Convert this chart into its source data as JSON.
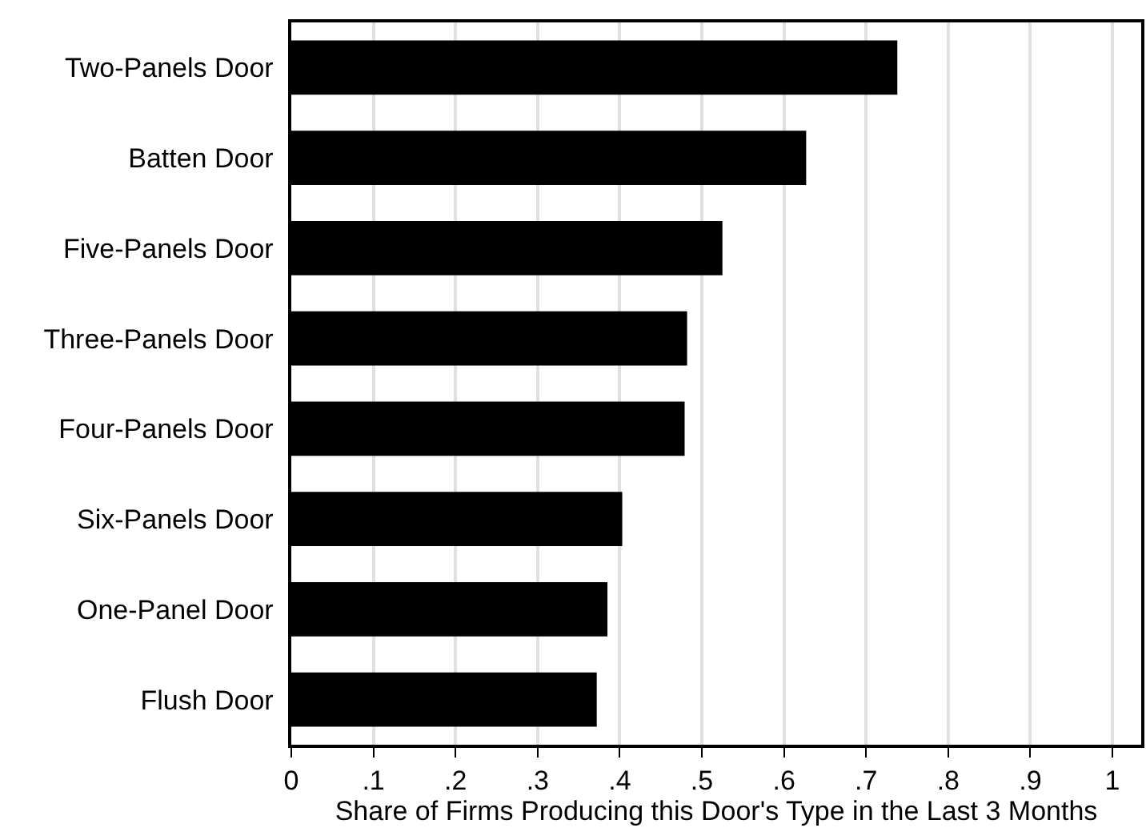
{
  "chart_data": {
    "type": "bar",
    "orientation": "horizontal",
    "xlabel": "Share of Firms Producing this Door's Type in the Last 3 Months",
    "categories": [
      "Two-Panels Door",
      "Batten Door",
      "Five-Panels Door",
      "Three-Panels Door",
      "Four-Panels Door",
      "Six-Panels Door",
      "One-Panel Door",
      "Flush Door"
    ],
    "values": [
      0.738,
      0.627,
      0.525,
      0.482,
      0.479,
      0.403,
      0.385,
      0.372
    ],
    "color": "#000000",
    "xlim": [
      0,
      1.035
    ],
    "xticks": [
      0,
      {
        "value": 0.1,
        "label": ".1"
      },
      {
        "value": 0.2,
        "label": ".2"
      },
      {
        "value": 0.3,
        "label": ".3"
      },
      {
        "value": 0.4,
        "label": ".4"
      },
      {
        "value": 0.5,
        "label": ".5"
      },
      {
        "value": 0.6,
        "label": ".6"
      },
      {
        "value": 0.7,
        "label": ".7"
      },
      {
        "value": 0.8,
        "label": ".8"
      },
      {
        "value": 0.9,
        "label": ".9"
      },
      1
    ],
    "grid": "x",
    "legend": false
  }
}
